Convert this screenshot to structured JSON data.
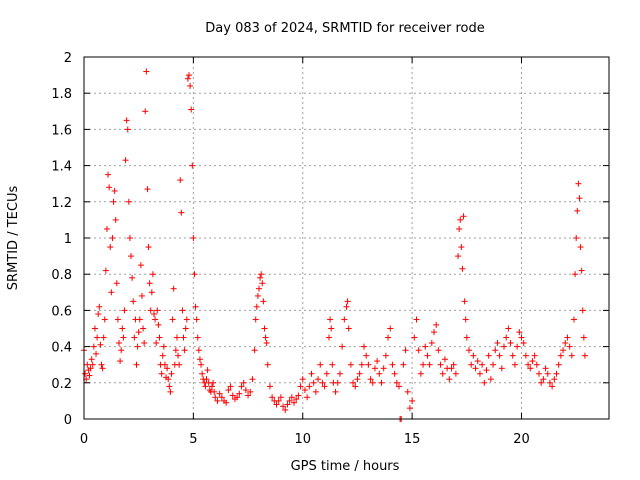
{
  "chart_data": {
    "type": "scatter",
    "title": "Day 083 of 2024, SRMTID for receiver rode",
    "xlabel": "GPS time / hours",
    "ylabel": "SRMTID / TECUs",
    "xlim": [
      0,
      24
    ],
    "ylim": [
      0,
      2
    ],
    "x_ticks": [
      "0",
      "5",
      "10",
      "15",
      "20"
    ],
    "y_ticks": [
      "0",
      "0.2",
      "0.4",
      "0.6",
      "0.8",
      "1",
      "1.2",
      "1.4",
      "1.6",
      "1.8",
      "2"
    ],
    "grid": true,
    "marker": "+",
    "marker_color": "#ff0000",
    "series": [
      {
        "name": "SRMTID",
        "points": [
          [
            0.0,
            0.38
          ],
          [
            0.05,
            0.25
          ],
          [
            0.1,
            0.22
          ],
          [
            0.15,
            0.3
          ],
          [
            0.2,
            0.27
          ],
          [
            0.25,
            0.24
          ],
          [
            0.3,
            0.28
          ],
          [
            0.35,
            0.33
          ],
          [
            0.4,
            0.3
          ],
          [
            0.45,
            0.4
          ],
          [
            0.5,
            0.5
          ],
          [
            0.55,
            0.36
          ],
          [
            0.6,
            0.45
          ],
          [
            0.65,
            0.58
          ],
          [
            0.7,
            0.62
          ],
          [
            0.75,
            0.41
          ],
          [
            0.8,
            0.3
          ],
          [
            0.85,
            0.28
          ],
          [
            0.9,
            0.45
          ],
          [
            0.95,
            0.55
          ],
          [
            1.0,
            0.82
          ],
          [
            1.05,
            1.05
          ],
          [
            1.1,
            1.35
          ],
          [
            1.15,
            1.28
          ],
          [
            1.2,
            0.95
          ],
          [
            1.25,
            0.7
          ],
          [
            1.3,
            1.0
          ],
          [
            1.35,
            1.2
          ],
          [
            1.4,
            1.26
          ],
          [
            1.45,
            1.1
          ],
          [
            1.5,
            0.75
          ],
          [
            1.55,
            0.55
          ],
          [
            1.6,
            0.42
          ],
          [
            1.65,
            0.32
          ],
          [
            1.7,
            0.38
          ],
          [
            1.75,
            0.5
          ],
          [
            1.8,
            0.45
          ],
          [
            1.85,
            0.6
          ],
          [
            1.9,
            1.43
          ],
          [
            1.95,
            1.65
          ],
          [
            2.0,
            1.6
          ],
          [
            2.05,
            1.2
          ],
          [
            2.1,
            1.0
          ],
          [
            2.15,
            0.9
          ],
          [
            2.2,
            0.78
          ],
          [
            2.25,
            0.65
          ],
          [
            2.3,
            0.45
          ],
          [
            2.35,
            0.55
          ],
          [
            2.4,
            0.3
          ],
          [
            2.45,
            0.4
          ],
          [
            2.5,
            0.48
          ],
          [
            2.55,
            0.55
          ],
          [
            2.6,
            0.85
          ],
          [
            2.65,
            0.68
          ],
          [
            2.7,
            0.5
          ],
          [
            2.75,
            0.42
          ],
          [
            2.8,
            1.7
          ],
          [
            2.85,
            1.92
          ],
          [
            2.9,
            1.27
          ],
          [
            2.95,
            0.95
          ],
          [
            3.0,
            0.75
          ],
          [
            3.05,
            0.6
          ],
          [
            3.1,
            0.7
          ],
          [
            3.15,
            0.8
          ],
          [
            3.2,
            0.58
          ],
          [
            3.25,
            0.55
          ],
          [
            3.3,
            0.42
          ],
          [
            3.35,
            0.6
          ],
          [
            3.4,
            0.52
          ],
          [
            3.45,
            0.45
          ],
          [
            3.5,
            0.3
          ],
          [
            3.55,
            0.25
          ],
          [
            3.6,
            0.35
          ],
          [
            3.65,
            0.4
          ],
          [
            3.7,
            0.3
          ],
          [
            3.75,
            0.23
          ],
          [
            3.8,
            0.28
          ],
          [
            3.85,
            0.22
          ],
          [
            3.9,
            0.18
          ],
          [
            3.95,
            0.15
          ],
          [
            4.0,
            0.25
          ],
          [
            4.05,
            0.55
          ],
          [
            4.1,
            0.72
          ],
          [
            4.15,
            0.3
          ],
          [
            4.2,
            0.38
          ],
          [
            4.25,
            0.45
          ],
          [
            4.3,
            0.35
          ],
          [
            4.35,
            0.3
          ],
          [
            4.4,
            1.32
          ],
          [
            4.45,
            1.14
          ],
          [
            4.5,
            0.6
          ],
          [
            4.55,
            0.45
          ],
          [
            4.6,
            0.38
          ],
          [
            4.65,
            0.5
          ],
          [
            4.7,
            0.55
          ],
          [
            4.75,
            1.88
          ],
          [
            4.8,
            1.9
          ],
          [
            4.85,
            1.84
          ],
          [
            4.9,
            1.71
          ],
          [
            4.95,
            1.4
          ],
          [
            5.0,
            1.0
          ],
          [
            5.05,
            0.8
          ],
          [
            5.1,
            0.62
          ],
          [
            5.15,
            0.55
          ],
          [
            5.2,
            0.45
          ],
          [
            5.25,
            0.38
          ],
          [
            5.3,
            0.33
          ],
          [
            5.35,
            0.3
          ],
          [
            5.4,
            0.25
          ],
          [
            5.45,
            0.22
          ],
          [
            5.5,
            0.2
          ],
          [
            5.55,
            0.18
          ],
          [
            5.6,
            0.22
          ],
          [
            5.65,
            0.27
          ],
          [
            5.7,
            0.2
          ],
          [
            5.75,
            0.16
          ],
          [
            5.8,
            0.15
          ],
          [
            5.85,
            0.18
          ],
          [
            5.9,
            0.2
          ],
          [
            5.95,
            0.15
          ],
          [
            6.0,
            0.12
          ],
          [
            6.1,
            0.1
          ],
          [
            6.2,
            0.14
          ],
          [
            6.3,
            0.12
          ],
          [
            6.4,
            0.1
          ],
          [
            6.5,
            0.09
          ],
          [
            6.6,
            0.16
          ],
          [
            6.7,
            0.18
          ],
          [
            6.8,
            0.13
          ],
          [
            6.9,
            0.11
          ],
          [
            7.0,
            0.12
          ],
          [
            7.1,
            0.14
          ],
          [
            7.2,
            0.18
          ],
          [
            7.3,
            0.2
          ],
          [
            7.4,
            0.16
          ],
          [
            7.5,
            0.13
          ],
          [
            7.6,
            0.15
          ],
          [
            7.7,
            0.22
          ],
          [
            7.8,
            0.38
          ],
          [
            7.85,
            0.55
          ],
          [
            7.9,
            0.62
          ],
          [
            7.95,
            0.68
          ],
          [
            8.0,
            0.72
          ],
          [
            8.05,
            0.78
          ],
          [
            8.1,
            0.8
          ],
          [
            8.15,
            0.75
          ],
          [
            8.2,
            0.65
          ],
          [
            8.25,
            0.5
          ],
          [
            8.3,
            0.45
          ],
          [
            8.35,
            0.42
          ],
          [
            8.4,
            0.3
          ],
          [
            8.5,
            0.18
          ],
          [
            8.6,
            0.12
          ],
          [
            8.7,
            0.1
          ],
          [
            8.8,
            0.08
          ],
          [
            8.9,
            0.1
          ],
          [
            9.0,
            0.12
          ],
          [
            9.1,
            0.07
          ],
          [
            9.2,
            0.05
          ],
          [
            9.3,
            0.08
          ],
          [
            9.4,
            0.1
          ],
          [
            9.5,
            0.12
          ],
          [
            9.6,
            0.09
          ],
          [
            9.7,
            0.11
          ],
          [
            9.8,
            0.13
          ],
          [
            9.9,
            0.18
          ],
          [
            10.0,
            0.22
          ],
          [
            10.1,
            0.16
          ],
          [
            10.2,
            0.12
          ],
          [
            10.3,
            0.18
          ],
          [
            10.4,
            0.25
          ],
          [
            10.5,
            0.2
          ],
          [
            10.6,
            0.15
          ],
          [
            10.7,
            0.22
          ],
          [
            10.8,
            0.3
          ],
          [
            10.9,
            0.2
          ],
          [
            11.0,
            0.18
          ],
          [
            11.1,
            0.25
          ],
          [
            11.2,
            0.45
          ],
          [
            11.25,
            0.55
          ],
          [
            11.3,
            0.5
          ],
          [
            11.35,
            0.3
          ],
          [
            11.4,
            0.2
          ],
          [
            11.5,
            0.15
          ],
          [
            11.6,
            0.2
          ],
          [
            11.7,
            0.25
          ],
          [
            11.8,
            0.4
          ],
          [
            11.9,
            0.55
          ],
          [
            12.0,
            0.62
          ],
          [
            12.05,
            0.65
          ],
          [
            12.1,
            0.5
          ],
          [
            12.2,
            0.3
          ],
          [
            12.3,
            0.2
          ],
          [
            12.4,
            0.18
          ],
          [
            12.5,
            0.22
          ],
          [
            12.6,
            0.25
          ],
          [
            12.7,
            0.3
          ],
          [
            12.8,
            0.4
          ],
          [
            12.9,
            0.35
          ],
          [
            13.0,
            0.3
          ],
          [
            13.1,
            0.22
          ],
          [
            13.2,
            0.2
          ],
          [
            13.3,
            0.28
          ],
          [
            13.4,
            0.32
          ],
          [
            13.5,
            0.25
          ],
          [
            13.6,
            0.2
          ],
          [
            13.7,
            0.28
          ],
          [
            13.8,
            0.35
          ],
          [
            13.9,
            0.45
          ],
          [
            14.0,
            0.5
          ],
          [
            14.1,
            0.3
          ],
          [
            14.2,
            0.25
          ],
          [
            14.3,
            0.2
          ],
          [
            14.4,
            0.18
          ],
          [
            14.45,
            0.0
          ],
          [
            14.5,
            0.0
          ],
          [
            14.6,
            0.3
          ],
          [
            14.7,
            0.38
          ],
          [
            14.8,
            0.15
          ],
          [
            14.9,
            0.06
          ],
          [
            15.0,
            0.1
          ],
          [
            15.1,
            0.45
          ],
          [
            15.2,
            0.55
          ],
          [
            15.3,
            0.38
          ],
          [
            15.4,
            0.25
          ],
          [
            15.5,
            0.3
          ],
          [
            15.6,
            0.4
          ],
          [
            15.7,
            0.35
          ],
          [
            15.8,
            0.3
          ],
          [
            15.9,
            0.42
          ],
          [
            16.0,
            0.48
          ],
          [
            16.1,
            0.52
          ],
          [
            16.2,
            0.38
          ],
          [
            16.3,
            0.3
          ],
          [
            16.4,
            0.25
          ],
          [
            16.5,
            0.33
          ],
          [
            16.6,
            0.28
          ],
          [
            16.7,
            0.22
          ],
          [
            16.8,
            0.28
          ],
          [
            16.9,
            0.3
          ],
          [
            17.0,
            0.25
          ],
          [
            17.1,
            0.9
          ],
          [
            17.15,
            1.05
          ],
          [
            17.2,
            1.1
          ],
          [
            17.25,
            0.95
          ],
          [
            17.3,
            0.83
          ],
          [
            17.35,
            1.12
          ],
          [
            17.4,
            0.65
          ],
          [
            17.45,
            0.55
          ],
          [
            17.5,
            0.45
          ],
          [
            17.6,
            0.38
          ],
          [
            17.7,
            0.3
          ],
          [
            17.8,
            0.35
          ],
          [
            17.9,
            0.28
          ],
          [
            18.0,
            0.32
          ],
          [
            18.1,
            0.25
          ],
          [
            18.2,
            0.3
          ],
          [
            18.3,
            0.2
          ],
          [
            18.4,
            0.27
          ],
          [
            18.5,
            0.35
          ],
          [
            18.6,
            0.22
          ],
          [
            18.7,
            0.3
          ],
          [
            18.8,
            0.38
          ],
          [
            18.9,
            0.42
          ],
          [
            19.0,
            0.35
          ],
          [
            19.1,
            0.28
          ],
          [
            19.2,
            0.4
          ],
          [
            19.3,
            0.45
          ],
          [
            19.4,
            0.5
          ],
          [
            19.5,
            0.42
          ],
          [
            19.6,
            0.35
          ],
          [
            19.7,
            0.3
          ],
          [
            19.8,
            0.4
          ],
          [
            19.9,
            0.48
          ],
          [
            20.0,
            0.45
          ],
          [
            20.1,
            0.42
          ],
          [
            20.2,
            0.35
          ],
          [
            20.3,
            0.3
          ],
          [
            20.4,
            0.28
          ],
          [
            20.5,
            0.32
          ],
          [
            20.6,
            0.35
          ],
          [
            20.7,
            0.3
          ],
          [
            20.8,
            0.25
          ],
          [
            20.9,
            0.2
          ],
          [
            21.0,
            0.22
          ],
          [
            21.1,
            0.28
          ],
          [
            21.2,
            0.25
          ],
          [
            21.3,
            0.2
          ],
          [
            21.4,
            0.18
          ],
          [
            21.5,
            0.22
          ],
          [
            21.6,
            0.25
          ],
          [
            21.7,
            0.3
          ],
          [
            21.8,
            0.35
          ],
          [
            21.9,
            0.38
          ],
          [
            22.0,
            0.42
          ],
          [
            22.1,
            0.45
          ],
          [
            22.2,
            0.4
          ],
          [
            22.3,
            0.35
          ],
          [
            22.4,
            0.55
          ],
          [
            22.45,
            0.8
          ],
          [
            22.5,
            1.0
          ],
          [
            22.55,
            1.15
          ],
          [
            22.6,
            1.3
          ],
          [
            22.65,
            1.22
          ],
          [
            22.7,
            0.95
          ],
          [
            22.75,
            0.82
          ],
          [
            22.8,
            0.6
          ],
          [
            22.85,
            0.45
          ],
          [
            22.9,
            0.35
          ]
        ]
      }
    ]
  }
}
